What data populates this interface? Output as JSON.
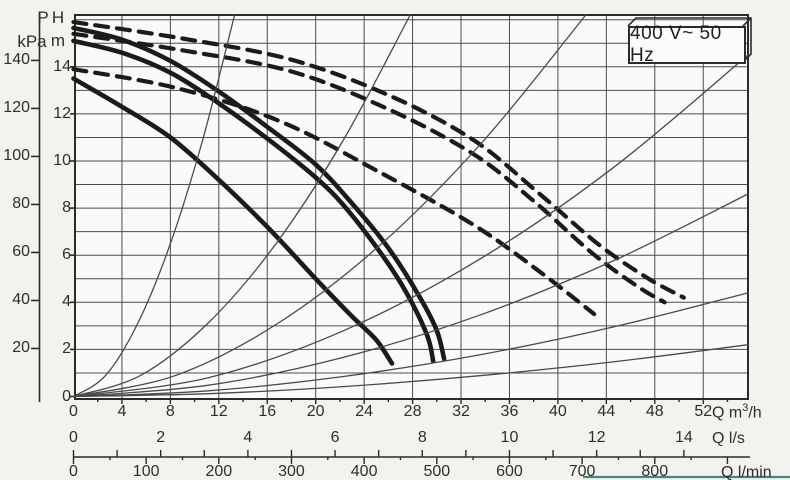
{
  "power_box": {
    "label": "400 V~ 50 Hz"
  },
  "axes": {
    "pressure": {
      "title_top": "P",
      "title_bottom": "kPa",
      "tick_labels": [
        140,
        120,
        100,
        80,
        60,
        40,
        20
      ],
      "tick_step_kpa": 20
    },
    "head": {
      "title_top": "H",
      "title_bottom": "m",
      "tick_labels": [
        14,
        12,
        10,
        8,
        6,
        4,
        2,
        0
      ]
    },
    "flow_m3h": {
      "unit_prefix": "Q m",
      "unit_sup": "3",
      "unit_suffix": "/h",
      "tick_labels": [
        0,
        4,
        8,
        12,
        16,
        20,
        24,
        28,
        32,
        36,
        40,
        44,
        48,
        52
      ]
    },
    "flow_ls": {
      "unit": "Q l/s",
      "labeled_ticks": [
        0,
        2,
        4,
        6,
        8,
        10,
        12,
        14
      ],
      "minor_tick_step": 1
    },
    "flow_lmin": {
      "unit": "Q l/min",
      "labeled_ticks": [
        0,
        100,
        200,
        300,
        400,
        500,
        600,
        700,
        800
      ],
      "minor_tick_step": 50
    }
  },
  "chart_data": {
    "type": "line",
    "title": "400 V~ 50 Hz",
    "x_unit": "Q m3/h",
    "y_unit_left": "P kPa",
    "y_unit_right": "H m",
    "x_range_m3h": [
      0,
      55.7
    ],
    "y_range_m": [
      0,
      16.2
    ],
    "grid": {
      "x_step_m3h": 4,
      "y_step_m": 1
    },
    "series": [
      {
        "name": "pump-curve-1",
        "style": "solid-thick",
        "points": [
          [
            0,
            15.65
          ],
          [
            4,
            15.15
          ],
          [
            8,
            14.25
          ],
          [
            12,
            12.95
          ],
          [
            16,
            11.45
          ],
          [
            20,
            9.85
          ],
          [
            23,
            8.2
          ],
          [
            26,
            6.3
          ],
          [
            28.5,
            4.3
          ],
          [
            30,
            2.8
          ],
          [
            30.6,
            1.6
          ]
        ]
      },
      {
        "name": "pump-curve-2",
        "style": "solid-thick",
        "points": [
          [
            0,
            15.1
          ],
          [
            4,
            14.6
          ],
          [
            8,
            13.75
          ],
          [
            12,
            12.45
          ],
          [
            16,
            10.95
          ],
          [
            20,
            9.3
          ],
          [
            22.5,
            8.0
          ],
          [
            25.5,
            6.0
          ],
          [
            27.5,
            4.4
          ],
          [
            29.2,
            2.6
          ],
          [
            29.7,
            1.5
          ]
        ]
      },
      {
        "name": "pump-curve-3",
        "style": "solid-thick",
        "points": [
          [
            0,
            13.5
          ],
          [
            4,
            12.3
          ],
          [
            8,
            11.0
          ],
          [
            12,
            9.2
          ],
          [
            16,
            7.2
          ],
          [
            20,
            5.0
          ],
          [
            23,
            3.4
          ],
          [
            25,
            2.4
          ],
          [
            26.3,
            1.4
          ]
        ]
      },
      {
        "name": "parallel-curve-1",
        "style": "dashed-thick",
        "points": [
          [
            0,
            15.9
          ],
          [
            9,
            15.2
          ],
          [
            18,
            14.3
          ],
          [
            26,
            12.8
          ],
          [
            33,
            10.9
          ],
          [
            38.5,
            8.6
          ],
          [
            43.5,
            6.4
          ],
          [
            47.5,
            5.0
          ],
          [
            50.4,
            4.2
          ]
        ]
      },
      {
        "name": "parallel-curve-2",
        "style": "dashed-thick",
        "points": [
          [
            0,
            15.4
          ],
          [
            9,
            14.7
          ],
          [
            18,
            13.8
          ],
          [
            26,
            12.2
          ],
          [
            33,
            10.3
          ],
          [
            38,
            8.3
          ],
          [
            42.8,
            6.1
          ],
          [
            46.5,
            4.7
          ],
          [
            48.8,
            4.0
          ]
        ]
      },
      {
        "name": "parallel-curve-3",
        "style": "dashed-thick",
        "points": [
          [
            0,
            13.9
          ],
          [
            8.5,
            13.1
          ],
          [
            17,
            11.7
          ],
          [
            25,
            9.6
          ],
          [
            33,
            7.3
          ],
          [
            38.5,
            5.3
          ],
          [
            43,
            3.5
          ]
        ]
      },
      {
        "name": "system-curve-1",
        "style": "thin",
        "points": [
          [
            0,
            0
          ],
          [
            2.66,
            0.9
          ],
          [
            5.32,
            3.12
          ],
          [
            7.98,
            6.46
          ],
          [
            10.64,
            10.85
          ],
          [
            13.3,
            16.2
          ]
        ]
      },
      {
        "name": "system-curve-2",
        "style": "thin",
        "points": [
          [
            0,
            0
          ],
          [
            5.56,
            0.9
          ],
          [
            11.12,
            3.12
          ],
          [
            16.68,
            6.46
          ],
          [
            22.24,
            10.85
          ],
          [
            27.8,
            16.2
          ]
        ]
      },
      {
        "name": "system-curve-3",
        "style": "thin",
        "points": [
          [
            0,
            0
          ],
          [
            8.46,
            0.9
          ],
          [
            16.92,
            3.12
          ],
          [
            25.38,
            6.46
          ],
          [
            33.84,
            10.85
          ],
          [
            42.3,
            16.2
          ]
        ]
      },
      {
        "name": "system-curve-4",
        "style": "thin",
        "points": [
          [
            0,
            0
          ],
          [
            11.14,
            0.8
          ],
          [
            22.28,
            2.79
          ],
          [
            33.42,
            5.79
          ],
          [
            44.56,
            9.71
          ],
          [
            55.7,
            14.5
          ]
        ]
      },
      {
        "name": "system-curve-5",
        "style": "thin",
        "points": [
          [
            0,
            0
          ],
          [
            11.14,
            0.48
          ],
          [
            22.28,
            1.66
          ],
          [
            33.42,
            3.43
          ],
          [
            44.56,
            5.76
          ],
          [
            55.7,
            8.6
          ]
        ]
      },
      {
        "name": "system-curve-6",
        "style": "thin",
        "points": [
          [
            0,
            0
          ],
          [
            11.14,
            0.24
          ],
          [
            22.28,
            0.85
          ],
          [
            33.42,
            1.76
          ],
          [
            44.56,
            2.95
          ],
          [
            55.7,
            4.4
          ]
        ]
      },
      {
        "name": "system-curve-7",
        "style": "thin",
        "points": [
          [
            0,
            0
          ],
          [
            11.14,
            0.12
          ],
          [
            22.28,
            0.42
          ],
          [
            33.42,
            0.88
          ],
          [
            44.56,
            1.47
          ],
          [
            55.7,
            2.2
          ]
        ]
      }
    ]
  },
  "colors": {
    "curve": "#1b1b1b",
    "thin_curve": "#4a4a4a",
    "grid": "#4d4d4d",
    "border": "#2b2b2b",
    "text": "#2e2e2e",
    "accent_teal": "#46887a",
    "paper": "#fbfaf8"
  }
}
